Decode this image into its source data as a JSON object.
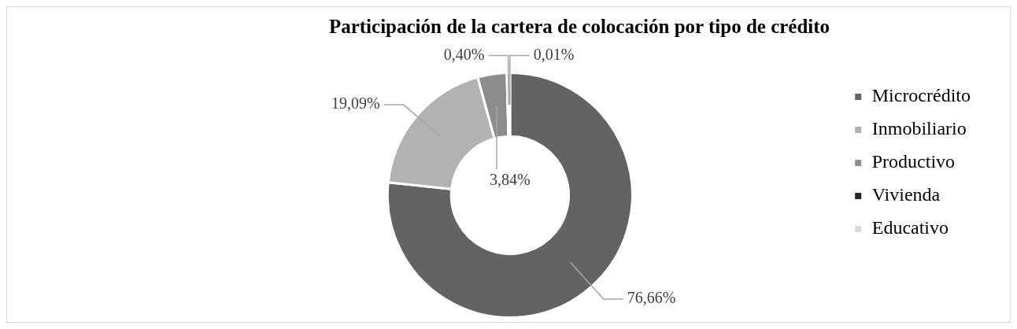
{
  "chart_data": {
    "type": "donut",
    "title": "Participación de la cartera de colocación por tipo de crédito",
    "categories": [
      "Microcrédito",
      "Inmobiliario",
      "Productivo",
      "Vivienda",
      "Educativo"
    ],
    "values": [
      76.66,
      19.09,
      3.84,
      0.4,
      0.01
    ],
    "colors": [
      "#636363",
      "#b2b2b2",
      "#8c8c8c",
      "#262626",
      "#d9d9d9"
    ],
    "value_labels": [
      "76,66%",
      "19,09%",
      "3,84%",
      "0,40%",
      "0,01%"
    ],
    "legend": "right"
  }
}
